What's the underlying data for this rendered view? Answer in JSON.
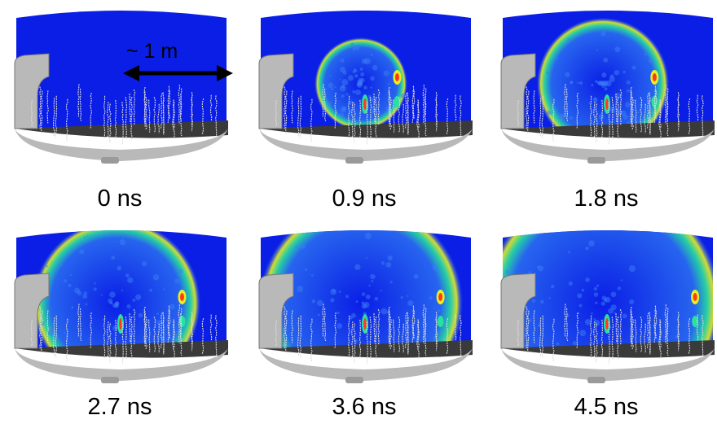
{
  "scale_label": "~ 1 m",
  "panels": [
    {
      "time": "0 ns",
      "wavefront_radius_fraction": 0
    },
    {
      "time": "0.9 ns",
      "wavefront_radius_fraction": 0.2
    },
    {
      "time": "1.8 ns",
      "wavefront_radius_fraction": 0.42
    },
    {
      "time": "2.7 ns",
      "wavefront_radius_fraction": 0.62
    },
    {
      "time": "3.6 ns",
      "wavefront_radius_fraction": 0.82
    },
    {
      "time": "4.5 ns",
      "wavefront_radius_fraction": 1.0
    }
  ],
  "colors": {
    "background_field": "#0a1ee6",
    "floor": "#3a3a3a",
    "rim": "#b9b9b9",
    "pmt_strings": "#dcdcdc",
    "hot": "#ff3a1a",
    "warm": "#e8f020",
    "mid": "#28e0a0"
  }
}
